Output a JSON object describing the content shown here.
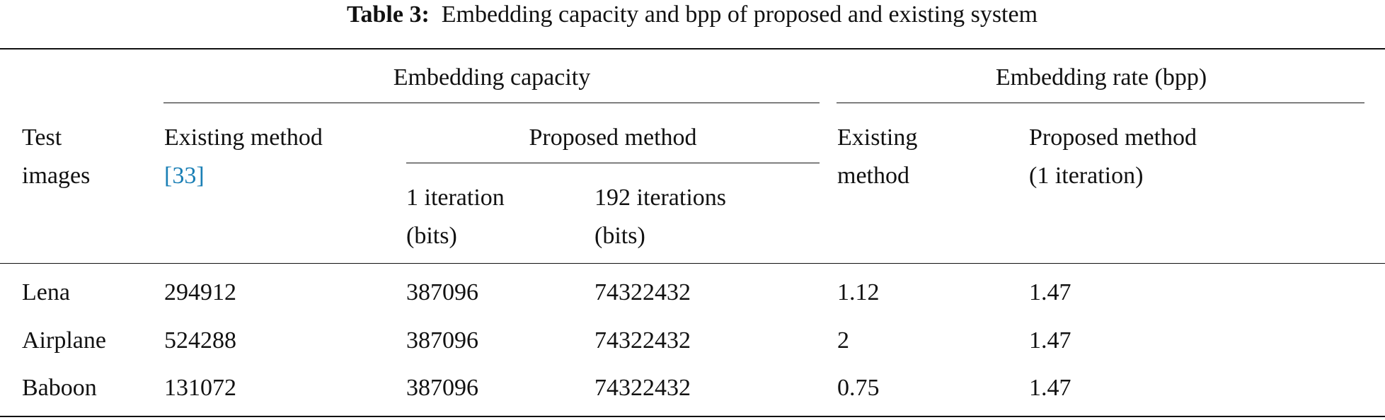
{
  "caption": {
    "label": "Table 3:",
    "text": "Embedding capacity and bpp of proposed and existing system"
  },
  "header": {
    "group_capacity": "Embedding capacity",
    "group_rate": "Embedding rate (bpp)",
    "test_images": [
      "Test",
      "images"
    ],
    "existing_capacity": [
      "Existing method",
      "[33]"
    ],
    "proposed_capacity": "Proposed method",
    "one_iteration": [
      "1 iteration",
      "(bits)"
    ],
    "iterations_192": [
      "192 iterations",
      "(bits)"
    ],
    "existing_rate": [
      "Existing",
      "method"
    ],
    "proposed_rate": [
      "Proposed method",
      "(1 iteration)"
    ]
  },
  "table": {
    "rows": [
      [
        "Lena",
        "294912",
        "387096",
        "74322432",
        "1.12",
        "1.47"
      ],
      [
        "Airplane",
        "524288",
        "387096",
        "74322432",
        "2",
        "1.47"
      ],
      [
        "Baboon",
        "131072",
        "387096",
        "74322432",
        "0.75",
        "1.47"
      ]
    ]
  }
}
